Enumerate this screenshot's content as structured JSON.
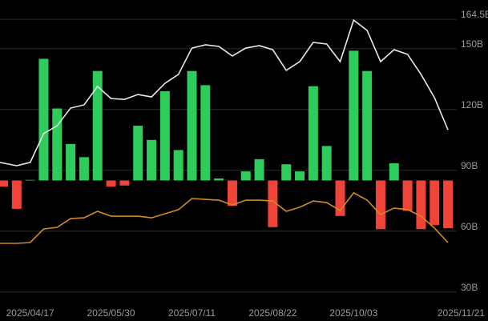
{
  "chart_data": {
    "type": "bar-line",
    "categories": [
      null,
      null,
      "2025/04/17",
      null,
      null,
      null,
      null,
      null,
      "2025/05/30",
      null,
      null,
      null,
      null,
      null,
      "2025/07/11",
      null,
      null,
      null,
      null,
      null,
      "2025/08/22",
      null,
      null,
      null,
      null,
      null,
      "2025/10/03",
      null,
      null,
      null,
      null,
      null,
      null,
      "2025/11/21"
    ],
    "series": [
      {
        "type": "bar",
        "axis": "y2",
        "color": "#2ecc5a",
        "negative_color": "#f0433a",
        "values": [
          -3,
          -14,
          0.3,
          60,
          35.5,
          18,
          11.5,
          54,
          -3,
          -2.5,
          27,
          20,
          44,
          15,
          54,
          47,
          1,
          -12.5,
          4.5,
          10.5,
          -23,
          8,
          4.5,
          46.5,
          17,
          -17.5,
          64,
          54,
          -24,
          8.5,
          -15,
          -24,
          -22,
          -23.5
        ]
      },
      {
        "type": "line",
        "color": "#e8e8e8",
        "values": [
          93.9,
          92.3,
          93.9,
          108.1,
          112,
          120.7,
          122.3,
          131.4,
          125.4,
          125,
          127.4,
          126.2,
          132.9,
          137.3,
          150.3,
          151.9,
          151.1,
          146.4,
          150.3,
          151.5,
          149.5,
          139.3,
          143.6,
          153.1,
          152.3,
          143.6,
          164.1,
          159,
          143.6,
          149.5,
          147.2,
          137.3,
          125.8,
          110
        ]
      },
      {
        "type": "line",
        "color": "#d18a1e",
        "values": [
          54,
          54,
          54.4,
          61.1,
          61.9,
          66.2,
          66.6,
          69.8,
          67.4,
          67.4,
          67.4,
          66.6,
          68.6,
          70.6,
          76.1,
          75.7,
          75.3,
          72.9,
          75.3,
          75.3,
          74.9,
          69.8,
          71.8,
          74.9,
          74.1,
          70.2,
          78.9,
          75.3,
          68.2,
          71.4,
          70.6,
          67.4,
          61.5,
          54.4
        ]
      }
    ],
    "ylim": [
      24,
      174
    ],
    "yticks": [
      {
        "value": 30,
        "label": "30B"
      },
      {
        "value": 60,
        "label": "60B"
      },
      {
        "value": 90,
        "label": "90B"
      },
      {
        "value": 120,
        "label": "120B"
      },
      {
        "value": 150,
        "label": "150B"
      },
      {
        "value": 164.5,
        "label": "164.5B"
      }
    ],
    "y2lim": [
      -61,
      89
    ],
    "grid": true
  }
}
